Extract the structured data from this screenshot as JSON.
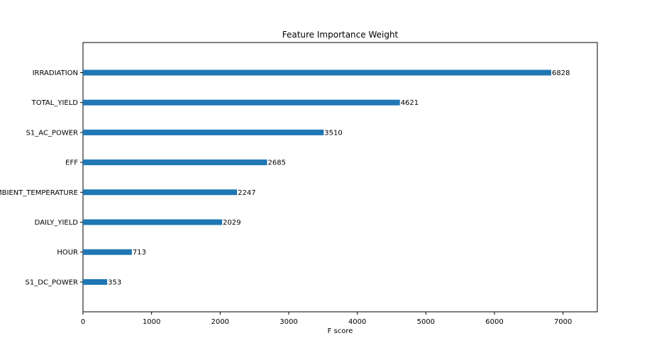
{
  "colors": {
    "bar": "#1f77b4",
    "axes": "#000000",
    "background": "#ffffff"
  },
  "chart_data": {
    "type": "bar",
    "orientation": "horizontal",
    "title": "Feature Importance Weight",
    "xlabel": "F score",
    "ylabel": "",
    "grid": false,
    "xlim": [
      0,
      7500
    ],
    "xticks": [
      0,
      1000,
      2000,
      3000,
      4000,
      5000,
      6000,
      7000
    ],
    "categories": [
      "IRRADIATION",
      "TOTAL_YIELD",
      "S1_AC_POWER",
      "EFF",
      "AMBIENT_TEMPERATURE",
      "DAILY_YIELD",
      "HOUR",
      "S1_DC_POWER"
    ],
    "values": [
      6828,
      4621,
      3510,
      2685,
      2247,
      2029,
      713,
      353
    ]
  }
}
